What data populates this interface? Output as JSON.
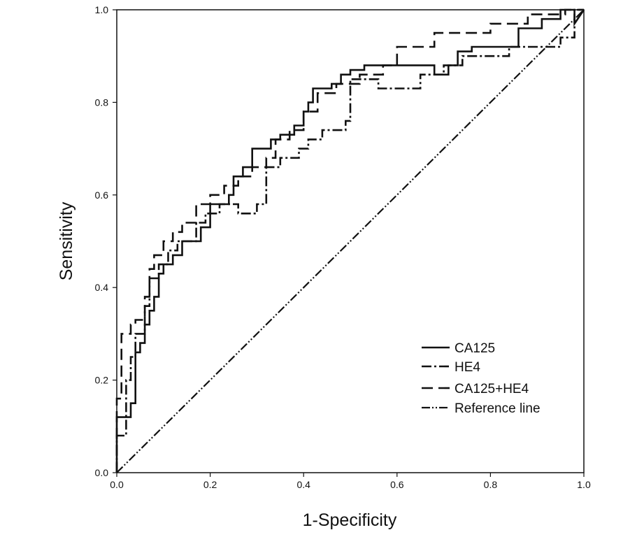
{
  "chart_data": {
    "type": "line",
    "title": "",
    "xlabel": "1-Specificity",
    "ylabel": "Sensitivity",
    "xlim": [
      0,
      1
    ],
    "ylim": [
      0,
      1
    ],
    "xticks": [
      0.0,
      0.2,
      0.4,
      0.6,
      0.8,
      1.0
    ],
    "yticks": [
      0.0,
      0.2,
      0.4,
      0.6,
      0.8,
      1.0
    ],
    "tick_labels": [
      "0.0",
      "0.2",
      "0.4",
      "0.6",
      "0.8",
      "1.0"
    ],
    "grid": false,
    "legend_position": "bottom-right",
    "series": [
      {
        "name": "CA125",
        "style": "solid",
        "x": [
          0.0,
          0.0,
          0.03,
          0.03,
          0.04,
          0.04,
          0.05,
          0.05,
          0.06,
          0.06,
          0.07,
          0.07,
          0.08,
          0.08,
          0.09,
          0.09,
          0.1,
          0.1,
          0.12,
          0.12,
          0.14,
          0.14,
          0.18,
          0.18,
          0.2,
          0.2,
          0.24,
          0.24,
          0.25,
          0.25,
          0.27,
          0.27,
          0.29,
          0.29,
          0.33,
          0.33,
          0.35,
          0.35,
          0.38,
          0.38,
          0.4,
          0.4,
          0.41,
          0.41,
          0.42,
          0.42,
          0.46,
          0.46,
          0.48,
          0.48,
          0.5,
          0.5,
          0.53,
          0.53,
          0.68,
          0.68,
          0.71,
          0.71,
          0.73,
          0.73,
          0.76,
          0.76,
          0.86,
          0.86,
          0.91,
          0.91,
          0.95,
          0.95,
          0.98,
          0.98,
          1.0
        ],
        "y": [
          0.0,
          0.12,
          0.12,
          0.15,
          0.15,
          0.26,
          0.26,
          0.28,
          0.28,
          0.32,
          0.32,
          0.35,
          0.35,
          0.38,
          0.38,
          0.43,
          0.43,
          0.45,
          0.45,
          0.47,
          0.47,
          0.5,
          0.5,
          0.53,
          0.53,
          0.58,
          0.58,
          0.6,
          0.6,
          0.64,
          0.64,
          0.66,
          0.66,
          0.7,
          0.7,
          0.72,
          0.72,
          0.73,
          0.73,
          0.75,
          0.75,
          0.78,
          0.78,
          0.8,
          0.8,
          0.83,
          0.83,
          0.84,
          0.84,
          0.86,
          0.86,
          0.87,
          0.87,
          0.88,
          0.88,
          0.86,
          0.86,
          0.88,
          0.88,
          0.91,
          0.91,
          0.92,
          0.92,
          0.96,
          0.96,
          0.98,
          0.98,
          1.0,
          1.0,
          0.97,
          1.0
        ]
      },
      {
        "name": "HE4",
        "style": "dashdot",
        "x": [
          0.0,
          0.0,
          0.02,
          0.02,
          0.03,
          0.03,
          0.04,
          0.04,
          0.06,
          0.06,
          0.07,
          0.07,
          0.09,
          0.09,
          0.11,
          0.11,
          0.13,
          0.13,
          0.17,
          0.17,
          0.19,
          0.19,
          0.22,
          0.22,
          0.26,
          0.26,
          0.3,
          0.3,
          0.32,
          0.32,
          0.35,
          0.35,
          0.39,
          0.39,
          0.41,
          0.41,
          0.44,
          0.44,
          0.49,
          0.49,
          0.5,
          0.5,
          0.56,
          0.56,
          0.65,
          0.65,
          0.7,
          0.7,
          0.74,
          0.74,
          0.84,
          0.84,
          0.95,
          0.95,
          0.98,
          0.98,
          1.0
        ],
        "y": [
          0.0,
          0.08,
          0.08,
          0.2,
          0.2,
          0.25,
          0.25,
          0.3,
          0.3,
          0.36,
          0.36,
          0.42,
          0.42,
          0.45,
          0.45,
          0.48,
          0.48,
          0.5,
          0.5,
          0.54,
          0.54,
          0.56,
          0.56,
          0.58,
          0.58,
          0.56,
          0.56,
          0.58,
          0.58,
          0.66,
          0.66,
          0.68,
          0.68,
          0.7,
          0.7,
          0.72,
          0.72,
          0.74,
          0.74,
          0.76,
          0.76,
          0.85,
          0.85,
          0.83,
          0.83,
          0.86,
          0.86,
          0.88,
          0.88,
          0.9,
          0.9,
          0.92,
          0.92,
          0.94,
          0.94,
          1.0,
          1.0
        ]
      },
      {
        "name": "CA125+HE4",
        "style": "dashed",
        "x": [
          0.0,
          0.0,
          0.01,
          0.01,
          0.03,
          0.03,
          0.04,
          0.04,
          0.06,
          0.06,
          0.07,
          0.07,
          0.08,
          0.08,
          0.1,
          0.1,
          0.12,
          0.12,
          0.14,
          0.14,
          0.17,
          0.17,
          0.2,
          0.2,
          0.23,
          0.23,
          0.26,
          0.26,
          0.29,
          0.29,
          0.32,
          0.32,
          0.34,
          0.34,
          0.37,
          0.37,
          0.4,
          0.4,
          0.43,
          0.43,
          0.47,
          0.47,
          0.52,
          0.52,
          0.57,
          0.57,
          0.6,
          0.6,
          0.68,
          0.68,
          0.8,
          0.8,
          0.88,
          0.88,
          0.96,
          0.96,
          1.0
        ],
        "y": [
          0.0,
          0.16,
          0.16,
          0.3,
          0.3,
          0.32,
          0.32,
          0.33,
          0.33,
          0.38,
          0.38,
          0.44,
          0.44,
          0.47,
          0.47,
          0.5,
          0.5,
          0.52,
          0.52,
          0.54,
          0.54,
          0.58,
          0.58,
          0.6,
          0.6,
          0.62,
          0.62,
          0.64,
          0.64,
          0.66,
          0.66,
          0.68,
          0.68,
          0.72,
          0.72,
          0.74,
          0.74,
          0.78,
          0.78,
          0.82,
          0.82,
          0.84,
          0.84,
          0.86,
          0.86,
          0.88,
          0.88,
          0.92,
          0.92,
          0.95,
          0.95,
          0.97,
          0.97,
          0.99,
          0.99,
          1.0,
          1.0
        ]
      },
      {
        "name": "Reference line",
        "style": "dashdotdot",
        "x": [
          0.0,
          1.0
        ],
        "y": [
          0.0,
          1.0
        ]
      }
    ]
  }
}
